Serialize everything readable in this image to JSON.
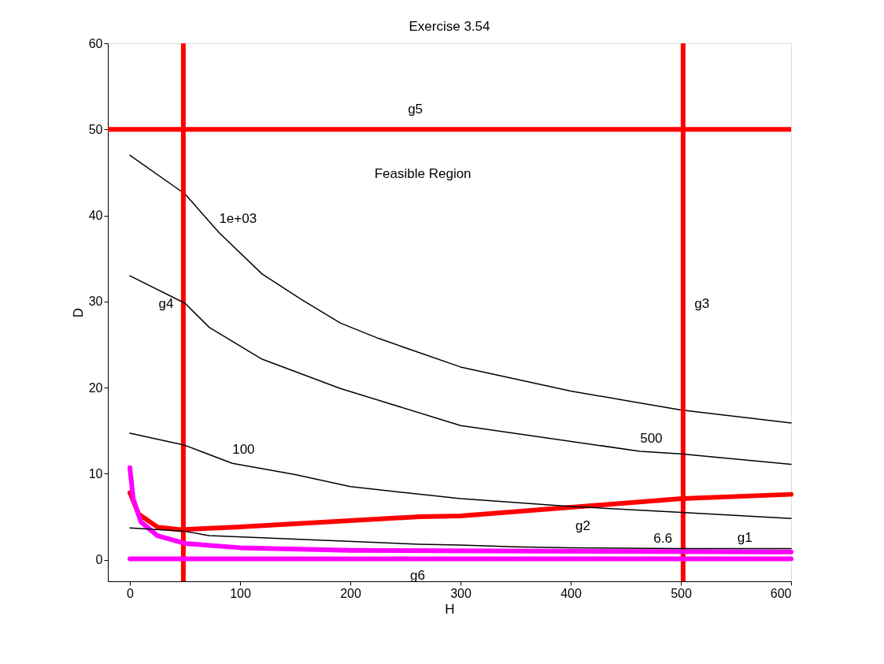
{
  "chart_data": {
    "type": "line",
    "title": "Exercise 3.54",
    "xlabel": "H",
    "ylabel": "D",
    "xlim": [
      -20,
      600
    ],
    "ylim": [
      -2.5,
      60
    ],
    "xticks": [
      0,
      100,
      200,
      300,
      400,
      500,
      600
    ],
    "yticks": [
      0,
      10,
      20,
      30,
      40,
      50,
      60
    ],
    "grid": false,
    "line_style": "solid",
    "marker": "none",
    "series": [
      {
        "name": "1e+03",
        "color": "#000000",
        "x": [
          0,
          50,
          81,
          120,
          155,
          191,
          226,
          300,
          400,
          500,
          600
        ],
        "values": [
          47.0,
          42.5,
          38.0,
          33.2,
          30.3,
          27.5,
          25.7,
          22.4,
          19.6,
          17.4,
          15.9
        ]
      },
      {
        "name": "500",
        "color": "#000000",
        "x": [
          0,
          50,
          72,
          120,
          191,
          300,
          463,
          500,
          600
        ],
        "values": [
          33.0,
          29.8,
          27.0,
          23.3,
          19.9,
          15.6,
          12.6,
          12.3,
          11.1
        ]
      },
      {
        "name": "100",
        "color": "#000000",
        "x": [
          0,
          50,
          93,
          150,
          200,
          300,
          400,
          500,
          600
        ],
        "values": [
          14.7,
          13.3,
          11.2,
          9.9,
          8.5,
          7.1,
          6.2,
          5.5,
          4.8
        ]
      },
      {
        "name": "6.6",
        "color": "#000000",
        "x": [
          0,
          50,
          72,
          263,
          300,
          350,
          400,
          500,
          600
        ],
        "values": [
          3.7,
          3.3,
          2.8,
          1.8,
          1.7,
          1.5,
          1.4,
          1.3,
          1.3
        ]
      },
      {
        "name": "g2",
        "color": "#ff0000",
        "x": [
          0,
          8,
          25,
          46,
          96,
          263,
          300,
          501,
          600
        ],
        "values": [
          7.8,
          5.3,
          3.8,
          3.5,
          3.8,
          5.0,
          5.1,
          7.1,
          7.6
        ]
      },
      {
        "name": "g1",
        "color": "#ff00ff",
        "x": [
          0,
          3,
          10,
          25,
          50,
          100,
          200,
          600
        ],
        "values": [
          10.7,
          7.1,
          4.4,
          2.8,
          1.9,
          1.4,
          1.1,
          0.9
        ]
      },
      {
        "name": "g6",
        "color": "#ff00ff",
        "x": [
          0,
          600
        ],
        "values": [
          0.1,
          0.1
        ]
      }
    ],
    "ref_lines": [
      {
        "axis": "x",
        "value": 48.5,
        "label": "g4",
        "color": "#ff0000"
      },
      {
        "axis": "x",
        "value": 502,
        "label": "g3",
        "color": "#ff0000"
      },
      {
        "axis": "y",
        "value": 50,
        "label": "g5",
        "color": "#ff0000"
      }
    ],
    "annotations": [
      "Feasible Region"
    ]
  }
}
